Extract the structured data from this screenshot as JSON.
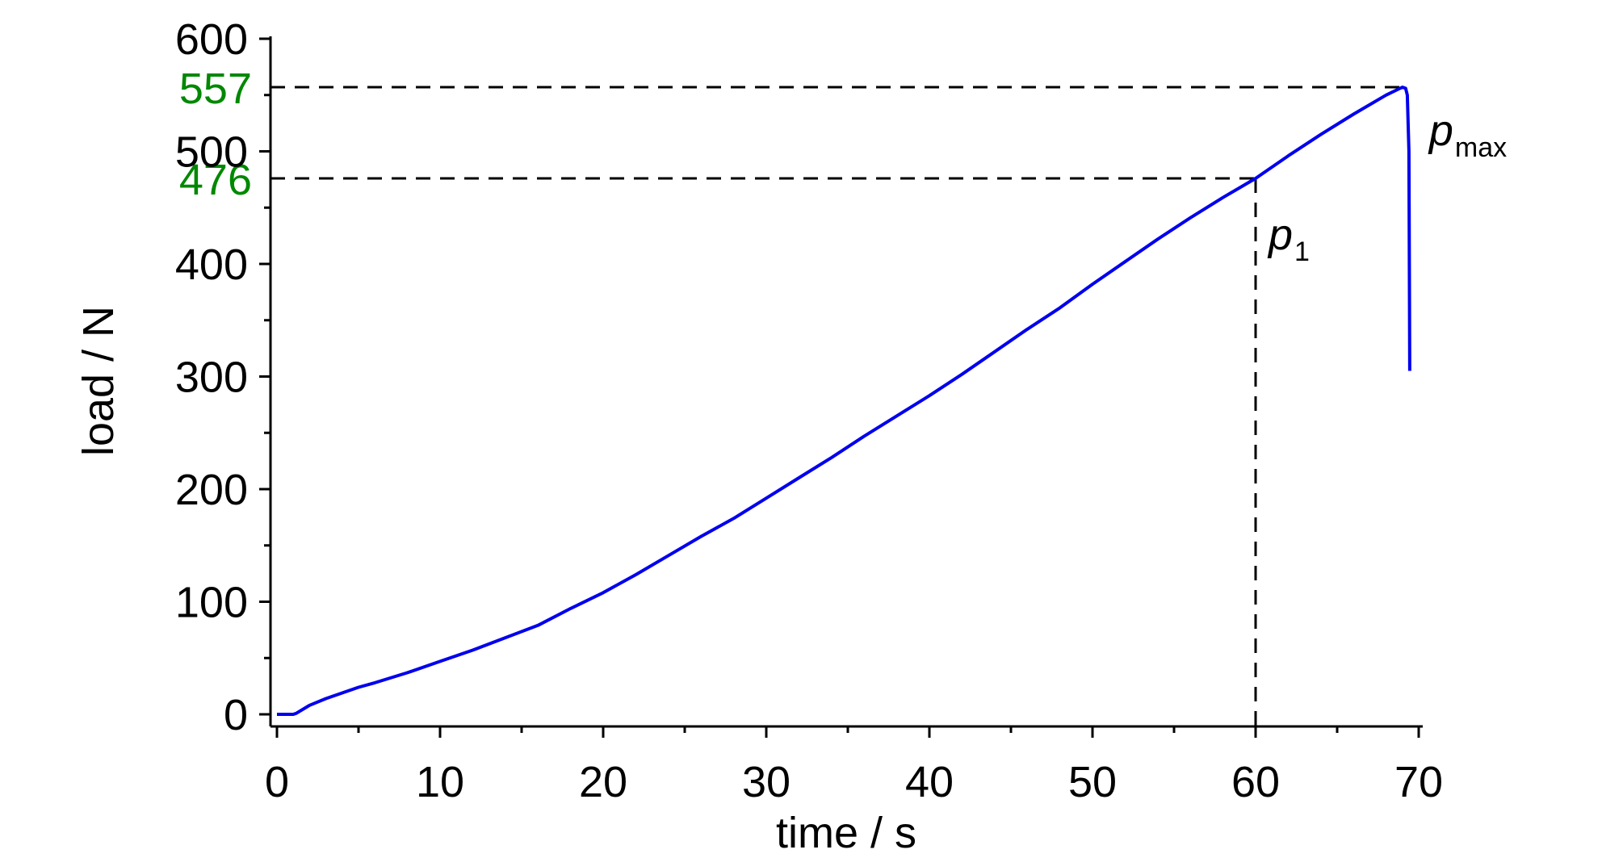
{
  "chart_data": {
    "type": "line",
    "xlabel": "time / s",
    "ylabel": "load / N",
    "xlim": [
      0,
      70
    ],
    "ylim": [
      0,
      600
    ],
    "x_ticks": [
      "0",
      "10",
      "20",
      "30",
      "40",
      "50",
      "60",
      "70"
    ],
    "y_ticks": [
      "0",
      "100",
      "200",
      "300",
      "400",
      "500",
      "600"
    ],
    "grid": false,
    "series": [
      {
        "color": "#0000ee",
        "x": [
          0,
          0.5,
          1.0,
          1.2,
          2,
          3,
          4,
          5,
          6,
          8,
          10,
          12,
          14,
          16,
          18,
          20,
          22,
          24,
          26,
          28,
          30,
          32,
          34,
          36,
          38,
          40,
          42,
          44,
          46,
          48,
          50,
          52,
          54,
          56,
          58,
          60,
          62,
          64,
          66,
          68,
          69.0,
          69.2,
          69.3,
          69.4,
          69.45
        ],
        "y": [
          0,
          0,
          0,
          1,
          8,
          14,
          19,
          24,
          28,
          37,
          47,
          57,
          68,
          79,
          94,
          108,
          124,
          141,
          158,
          174,
          192,
          210,
          228,
          247,
          265,
          283,
          302,
          322,
          342,
          361,
          382,
          402,
          422,
          441,
          459,
          476,
          496,
          515,
          533,
          550,
          557,
          556,
          550,
          500,
          305
        ]
      }
    ],
    "reference_lines": [
      {
        "y": 557,
        "y_label": "557",
        "x_end": 69,
        "label_color": "#008800"
      },
      {
        "y": 476,
        "y_label": "476",
        "x_end": 60,
        "label_color": "#008800"
      },
      {
        "x": 60,
        "y_end": 476
      }
    ],
    "annotations": [
      {
        "text": "p",
        "subscript": "max",
        "x": 69.45,
        "y": 557
      },
      {
        "text": "p",
        "subscript": "1",
        "x": 60,
        "y": 476
      }
    ]
  }
}
